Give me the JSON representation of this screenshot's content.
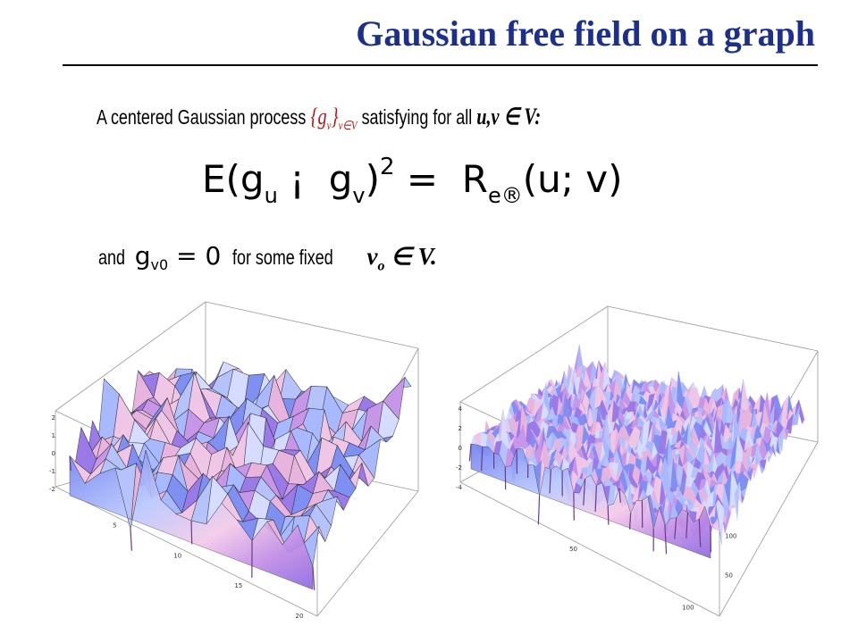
{
  "slide": {
    "title": "Gaussian free field on a graph",
    "line1": {
      "prefix": "A centered Gaussian process",
      "gv": "{g",
      "gv_sub": "v",
      "gv_close": "}",
      "gv_index": "v∈V",
      "middle": "satisfying for all",
      "uv": "u,v ∈ V:"
    },
    "formula": {
      "lhs": "E(g",
      "sub_u": "u",
      "mid": " ¡  g",
      "sub_v": "v",
      "paren": ")",
      "sup": "2",
      "eq": " =  R",
      "sub_eff": "e®",
      "rhs": "(u; v)"
    },
    "line3": {
      "and": "and",
      "g": "g",
      "g_sub": "v0",
      "g_eq": " = 0",
      "rest": "for some fixed",
      "v0": "v",
      "v0_sub": "o",
      "v0_tail": " ∈ V."
    }
  },
  "plots": {
    "left": {
      "z_ticks": [
        "2",
        "1",
        "0",
        "-1",
        "-2"
      ],
      "x_ticks": [
        "5",
        "10",
        "15",
        "20"
      ]
    },
    "right": {
      "z_ticks": [
        "4",
        "2",
        "0",
        "-2",
        "-4"
      ],
      "x_ticks": [
        "50",
        "100"
      ],
      "y_ticks": [
        "50",
        "100"
      ]
    }
  }
}
